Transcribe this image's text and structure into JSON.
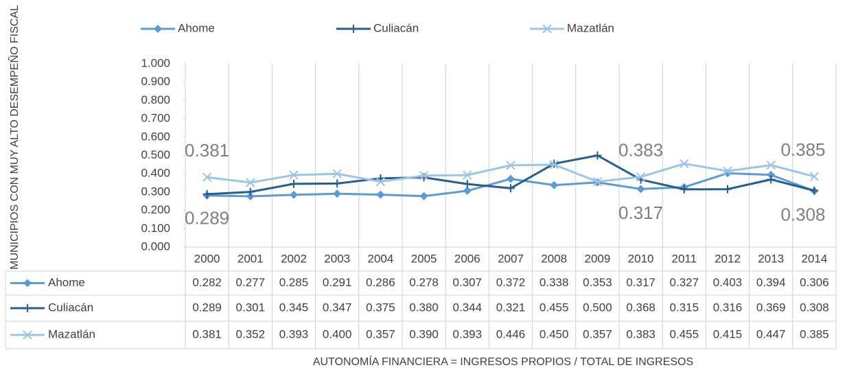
{
  "chart_data": {
    "type": "line",
    "y_label": "MUNICIPIOS CON MUY ALTO DESEMPEÑO FISCAL",
    "x_label": "AUTONOMÍA FINANCIERA = INGRESOS PROPIOS / TOTAL DE INGRESOS",
    "categories": [
      "2000",
      "2001",
      "2002",
      "2003",
      "2004",
      "2005",
      "2006",
      "2007",
      "2008",
      "2009",
      "2010",
      "2011",
      "2012",
      "2013",
      "2014"
    ],
    "series": [
      {
        "name": "Ahome",
        "color": "#5b9bd5",
        "marker": "diamond",
        "values": [
          0.282,
          0.277,
          0.285,
          0.291,
          0.286,
          0.278,
          0.307,
          0.372,
          0.338,
          0.353,
          0.317,
          0.327,
          0.403,
          0.394,
          0.306
        ],
        "value_labels": [
          "0.282",
          "0.277",
          "0.285",
          "0.291",
          "0.286",
          "0.278",
          "0.307",
          "0.372",
          "0.338",
          "0.353",
          "0.317",
          "0.327",
          "0.403",
          "0.394",
          "0.306"
        ]
      },
      {
        "name": "Culiacán",
        "color": "#255e91",
        "marker": "plus",
        "values": [
          0.289,
          0.301,
          0.345,
          0.347,
          0.375,
          0.38,
          0.344,
          0.321,
          0.455,
          0.5,
          0.368,
          0.315,
          0.316,
          0.369,
          0.308
        ],
        "value_labels": [
          "0.289",
          "0.301",
          "0.345",
          "0.347",
          "0.375",
          "0.380",
          "0.344",
          "0.321",
          "0.455",
          "0.500",
          "0.368",
          "0.315",
          "0.316",
          "0.369",
          "0.308"
        ]
      },
      {
        "name": "Mazatlán",
        "color": "#9dc3e6",
        "marker": "x",
        "values": [
          0.381,
          0.352,
          0.393,
          0.4,
          0.357,
          0.39,
          0.393,
          0.446,
          0.45,
          0.357,
          0.383,
          0.455,
          0.415,
          0.447,
          0.385
        ],
        "value_labels": [
          "0.381",
          "0.352",
          "0.393",
          "0.400",
          "0.357",
          "0.390",
          "0.393",
          "0.446",
          "0.450",
          "0.357",
          "0.383",
          "0.455",
          "0.415",
          "0.447",
          "0.385"
        ]
      }
    ],
    "data_labels": [
      {
        "series": 2,
        "index": 0,
        "position": "above"
      },
      {
        "series": 1,
        "index": 0,
        "position": "below"
      },
      {
        "series": 2,
        "index": 10,
        "position": "above"
      },
      {
        "series": 0,
        "index": 10,
        "position": "below"
      },
      {
        "series": 2,
        "index": 14,
        "position": "above"
      },
      {
        "series": 1,
        "index": 14,
        "position": "below"
      }
    ],
    "ylim": [
      0,
      1
    ],
    "yticks": [
      {
        "value": 0,
        "label": "0.000"
      },
      {
        "value": 0.1,
        "label": "0.100"
      },
      {
        "value": 0.2,
        "label": "0.200"
      },
      {
        "value": 0.3,
        "label": "0.300"
      },
      {
        "value": 0.4,
        "label": "0.400"
      },
      {
        "value": 0.5,
        "label": "0.500"
      },
      {
        "value": 0.6,
        "label": "0.600"
      },
      {
        "value": 0.7,
        "label": "0.700"
      },
      {
        "value": 0.8,
        "label": "0.800"
      },
      {
        "value": 0.9,
        "label": "0.900"
      },
      {
        "value": 1,
        "label": "1.000"
      }
    ],
    "legend": "top",
    "data_table": true
  }
}
